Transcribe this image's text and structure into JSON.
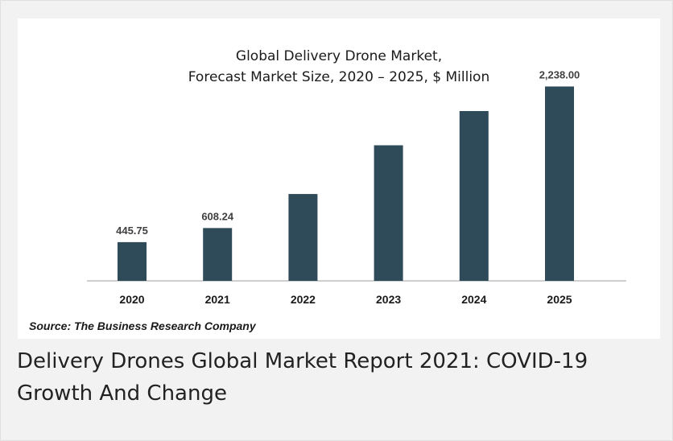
{
  "caption": "Delivery Drones Global Market Report 2021: COVID-19 Growth And Change",
  "source": "Source: The Business Research Company",
  "colors": {
    "bar": "#2f4b5a",
    "axis": "#bfbfbf",
    "text": "#1a1a1a"
  },
  "chart_data": {
    "type": "bar",
    "title": [
      "Global Delivery Drone Market,",
      "Forecast Market Size, 2020 – 2025, $ Million"
    ],
    "xlabel": "",
    "ylabel": "",
    "categories": [
      "2020",
      "2021",
      "2022",
      "2023",
      "2024",
      "2025"
    ],
    "values": [
      445.75,
      608.24,
      1000,
      1561,
      1955,
      2238
    ],
    "data_labels": [
      "445.75",
      "608.24",
      "",
      "",
      "",
      "2,238.00"
    ],
    "ylim": [
      0,
      2650
    ],
    "grid": false,
    "legend": "none"
  }
}
